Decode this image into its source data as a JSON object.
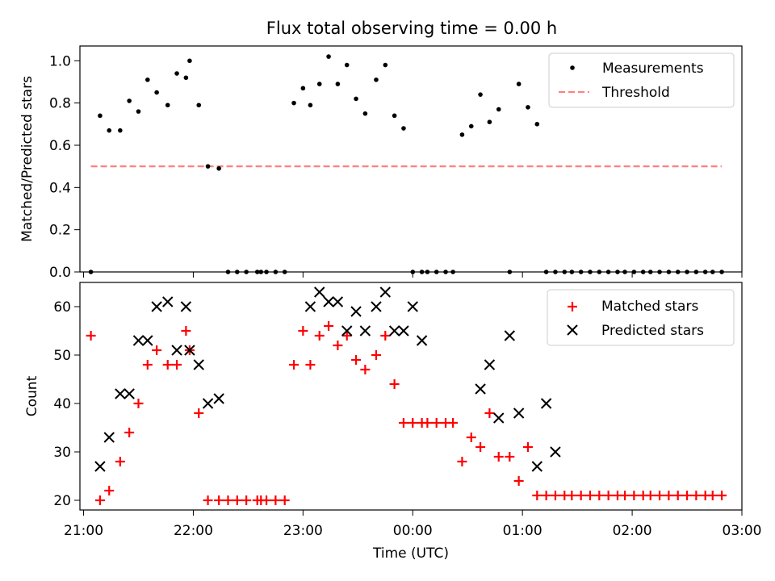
{
  "chart_data": [
    {
      "type": "scatter",
      "title": "Flux total observing time = 0.00 h",
      "ylabel": "Matched/Predicted stars",
      "ylim": [
        0,
        1.07
      ],
      "yticks": [
        "0.0",
        "0.2",
        "0.4",
        "0.6",
        "0.8",
        "1.0"
      ],
      "legend_position": "top-right",
      "series": [
        {
          "name": "Measurements",
          "marker": "dot",
          "color": "#000000",
          "x": [
            "21:04",
            "21:09",
            "21:14",
            "21:20",
            "21:25",
            "21:30",
            "21:35",
            "21:40",
            "21:46",
            "21:51",
            "21:56",
            "21:58",
            "22:03",
            "22:08",
            "22:14",
            "22:19",
            "22:24",
            "22:29",
            "22:35",
            "22:37",
            "22:40",
            "22:45",
            "22:50",
            "22:55",
            "23:00",
            "23:04",
            "23:09",
            "23:14",
            "23:19",
            "23:24",
            "23:29",
            "23:34",
            "23:40",
            "23:45",
            "23:50",
            "23:55",
            "00:00",
            "00:05",
            "00:08",
            "00:13",
            "00:18",
            "00:22",
            "00:27",
            "00:32",
            "00:37",
            "00:42",
            "00:47",
            "00:53",
            "00:58",
            "01:03",
            "01:08",
            "01:13",
            "01:18",
            "01:23",
            "01:27",
            "01:32",
            "01:37",
            "01:42",
            "01:47",
            "01:52",
            "01:56",
            "02:01",
            "02:06",
            "02:10",
            "02:15",
            "02:20",
            "02:25",
            "02:30",
            "02:35",
            "02:40",
            "02:44",
            "02:49"
          ],
          "values": [
            0.0,
            0.74,
            0.67,
            0.67,
            0.81,
            0.76,
            0.91,
            0.85,
            0.79,
            0.94,
            0.92,
            1.0,
            0.79,
            0.5,
            0.49,
            0.0,
            0.0,
            0.0,
            0.0,
            0.0,
            0.0,
            0.0,
            0.0,
            0.8,
            0.87,
            0.79,
            0.89,
            1.02,
            0.89,
            0.98,
            0.82,
            0.75,
            0.91,
            0.98,
            0.74,
            0.68,
            0.0,
            0.0,
            0.0,
            0.0,
            0.0,
            0.0,
            0.65,
            0.69,
            0.84,
            0.71,
            0.77,
            0.0,
            0.89,
            0.78,
            0.7,
            0.0,
            0.0,
            0.0,
            0.0,
            0.0,
            0.0,
            0.0,
            0.0,
            0.0,
            0.0,
            0.0,
            0.0,
            0.0,
            0.0,
            0.0,
            0.0,
            0.0,
            0.0,
            0.0,
            0.0,
            0.0
          ]
        },
        {
          "name": "Threshold",
          "marker": "dashed-line",
          "color": "#ff8080",
          "x": [
            "21:04",
            "02:49"
          ],
          "values": [
            0.5,
            0.5
          ]
        }
      ]
    },
    {
      "type": "scatter",
      "xlabel": "Time (UTC)",
      "ylabel": "Count",
      "ylim": [
        18,
        65
      ],
      "yticks": [
        "20",
        "30",
        "40",
        "50",
        "60"
      ],
      "xlim": [
        "20:58",
        "03:00"
      ],
      "xticks": [
        "21:00",
        "22:00",
        "23:00",
        "00:00",
        "01:00",
        "02:00",
        "03:00"
      ],
      "legend_position": "top-right",
      "series": [
        {
          "name": "Matched stars",
          "marker": "plus",
          "color": "#ff0000",
          "x": [
            "21:04",
            "21:09",
            "21:14",
            "21:20",
            "21:25",
            "21:30",
            "21:35",
            "21:40",
            "21:46",
            "21:51",
            "21:56",
            "21:58",
            "22:03",
            "22:08",
            "22:14",
            "22:19",
            "22:24",
            "22:29",
            "22:35",
            "22:37",
            "22:40",
            "22:45",
            "22:50",
            "22:55",
            "23:00",
            "23:04",
            "23:09",
            "23:14",
            "23:19",
            "23:24",
            "23:29",
            "23:34",
            "23:40",
            "23:45",
            "23:50",
            "23:55",
            "00:00",
            "00:05",
            "00:08",
            "00:13",
            "00:18",
            "00:22",
            "00:27",
            "00:32",
            "00:37",
            "00:42",
            "00:47",
            "00:53",
            "00:58",
            "01:03",
            "01:08",
            "01:13",
            "01:18",
            "01:23",
            "01:27",
            "01:32",
            "01:37",
            "01:42",
            "01:47",
            "01:52",
            "01:56",
            "02:01",
            "02:06",
            "02:10",
            "02:15",
            "02:20",
            "02:25",
            "02:30",
            "02:35",
            "02:40",
            "02:44",
            "02:49"
          ],
          "values": [
            54,
            20,
            22,
            28,
            34,
            40,
            48,
            51,
            48,
            48,
            55,
            51,
            38,
            20,
            20,
            20,
            20,
            20,
            20,
            20,
            20,
            20,
            20,
            48,
            55,
            48,
            54,
            56,
            52,
            54,
            49,
            47,
            50,
            54,
            44,
            36,
            36,
            36,
            36,
            36,
            36,
            36,
            28,
            33,
            31,
            38,
            29,
            29,
            24,
            31,
            21,
            21,
            21,
            21,
            21,
            21,
            21,
            21,
            21,
            21,
            21,
            21,
            21,
            21,
            21,
            21,
            21,
            21,
            21,
            21,
            21,
            21
          ]
        },
        {
          "name": "Predicted stars",
          "marker": "x",
          "color": "#000000",
          "x": [
            "21:09",
            "21:14",
            "21:20",
            "21:25",
            "21:30",
            "21:35",
            "21:40",
            "21:46",
            "21:51",
            "21:56",
            "21:58",
            "22:03",
            "22:08",
            "22:14",
            "23:04",
            "23:09",
            "23:14",
            "23:19",
            "23:24",
            "23:29",
            "23:34",
            "23:40",
            "23:45",
            "23:50",
            "23:55",
            "00:00",
            "00:05",
            "00:37",
            "00:42",
            "00:47",
            "00:53",
            "00:58",
            "01:08",
            "01:13",
            "01:18"
          ],
          "values": [
            27,
            33,
            42,
            42,
            53,
            53,
            60,
            61,
            51,
            60,
            51,
            48,
            40,
            41,
            60,
            63,
            61,
            61,
            55,
            59,
            55,
            60,
            63,
            55,
            55,
            60,
            53,
            43,
            48,
            37,
            54,
            38,
            27,
            40,
            30
          ]
        }
      ]
    }
  ]
}
